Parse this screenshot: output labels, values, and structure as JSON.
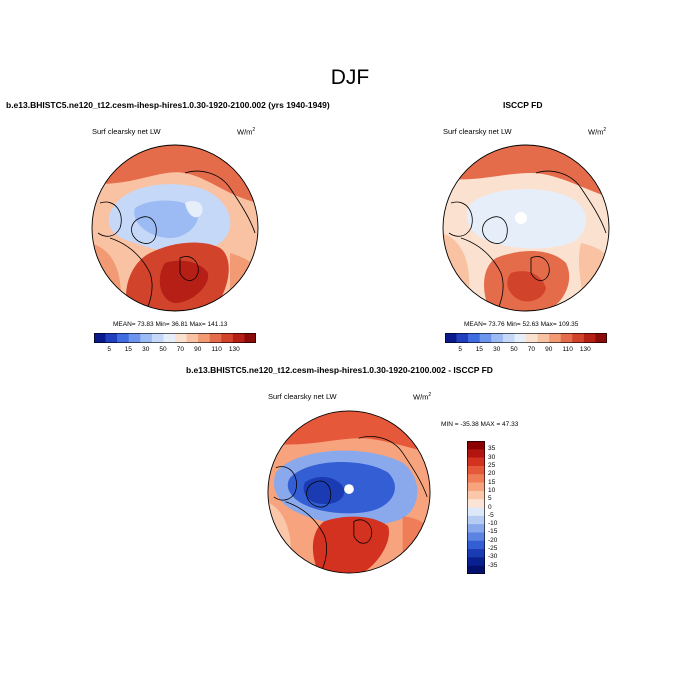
{
  "figure": {
    "title": "DJF"
  },
  "panels": {
    "model": {
      "title": "b.e13.BHISTC5.ne120_t12.cesm-ihesp-hires1.0.30-1920-2100.002 (yrs 1940-1949)",
      "field_label": "Surf clearsky net LW",
      "units_base": "W/m",
      "units_exp": "2",
      "stats": "MEAN= 73.83  Min= 36.81  Max= 141.13",
      "colorbar_ticks": [
        "5",
        "15",
        "30",
        "50",
        "70",
        "90",
        "110",
        "130"
      ]
    },
    "obs": {
      "title": "ISCCP FD",
      "field_label": "Surf clearsky net LW",
      "units_base": "W/m",
      "units_exp": "2",
      "stats": "MEAN= 73.76  Min= 52.63  Max= 109.35",
      "colorbar_ticks": [
        "5",
        "15",
        "30",
        "50",
        "70",
        "90",
        "110",
        "130"
      ]
    },
    "diff": {
      "title": "b.e13.BHISTC5.ne120_t12.cesm-ihesp-hires1.0.30-1920-2100.002 - ISCCP FD",
      "field_label": "Surf clearsky net LW",
      "units_base": "W/m",
      "units_exp": "2",
      "stats": "MIN = -35.38 MAX =  47.33",
      "colorbar_ticks": [
        "35",
        "30",
        "25",
        "20",
        "15",
        "10",
        "5",
        "0",
        "-5",
        "-10",
        "-15",
        "-20",
        "-25",
        "-30",
        "-35"
      ]
    }
  },
  "chart_data": [
    {
      "type": "heatmap",
      "title": "b.e13.BHISTC5.ne120_t12.cesm-ihesp-hires1.0.30-1920-2100.002 (yrs 1940-1949)",
      "projection": "north polar stereographic",
      "variable": "Surf clearsky net LW",
      "units": "W/m2",
      "mean": 73.83,
      "min": 36.81,
      "max": 141.13,
      "levels": [
        5,
        15,
        30,
        50,
        70,
        90,
        110,
        130
      ],
      "palette": [
        "#0a1a8c",
        "#1f3fbf",
        "#3f6ce0",
        "#6e95ee",
        "#9cbaf4",
        "#c6d8f8",
        "#e6eef9",
        "#fbe1cf",
        "#f8c2a3",
        "#f19a74",
        "#e46c4a",
        "#d2432b",
        "#b51f16",
        "#8b0a0a"
      ]
    },
    {
      "type": "heatmap",
      "title": "ISCCP FD",
      "projection": "north polar stereographic",
      "variable": "Surf clearsky net LW",
      "units": "W/m2",
      "mean": 73.76,
      "min": 52.63,
      "max": 109.35,
      "levels": [
        5,
        15,
        30,
        50,
        70,
        90,
        110,
        130
      ],
      "palette": [
        "#0a1a8c",
        "#1f3fbf",
        "#3f6ce0",
        "#6e95ee",
        "#9cbaf4",
        "#c6d8f8",
        "#e6eef9",
        "#fbe1cf",
        "#f8c2a3",
        "#f19a74",
        "#e46c4a",
        "#d2432b",
        "#b51f16",
        "#8b0a0a"
      ]
    },
    {
      "type": "heatmap",
      "title": "b.e13.BHISTC5.ne120_t12.cesm-ihesp-hires1.0.30-1920-2100.002 - ISCCP FD",
      "projection": "north polar stereographic",
      "variable": "Surf clearsky net LW",
      "units": "W/m2",
      "min": -35.38,
      "max": 47.33,
      "levels": [
        35,
        30,
        25,
        20,
        15,
        10,
        5,
        0,
        -5,
        -10,
        -15,
        -20,
        -25,
        -30,
        -35
      ],
      "palette": [
        "#8b0000",
        "#b2140f",
        "#d2321f",
        "#e5583a",
        "#ef7d58",
        "#f6a37e",
        "#fbc7ab",
        "#fbe4d6",
        "#dde8f8",
        "#b7ccf3",
        "#8aa9ec",
        "#5c83e2",
        "#345ed3",
        "#1a3bb2",
        "#0b2090",
        "#04106d"
      ]
    }
  ]
}
